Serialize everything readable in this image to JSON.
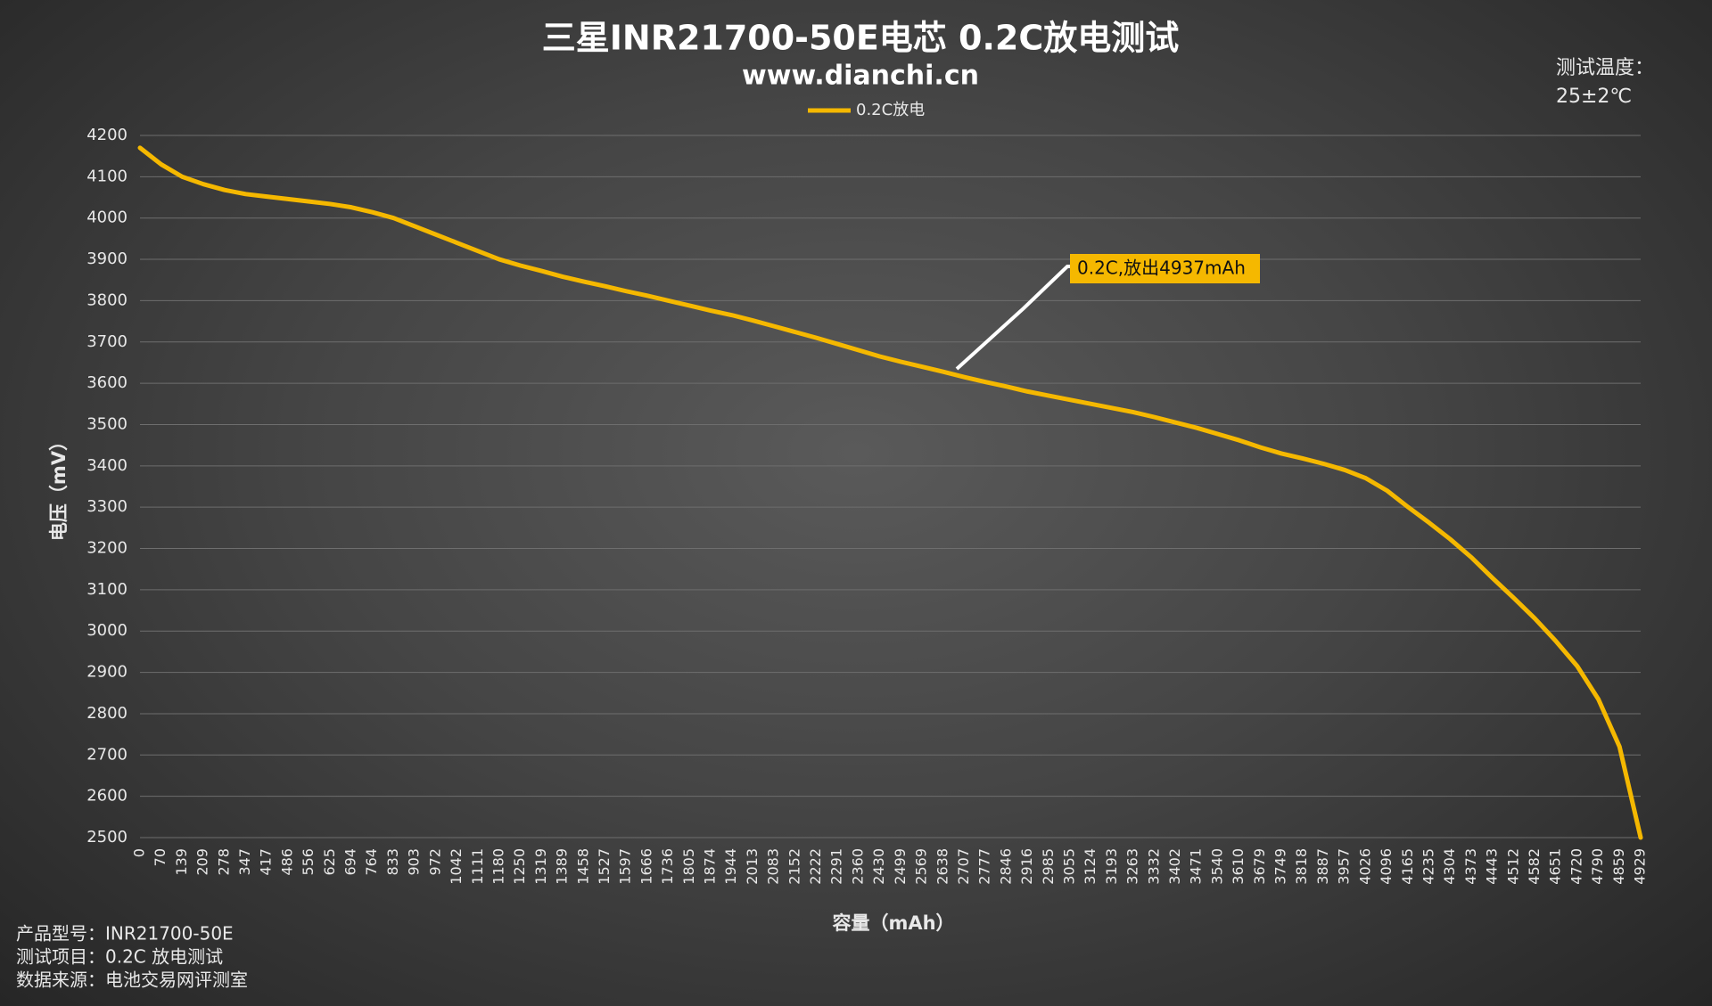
{
  "chart_data": {
    "type": "line",
    "title": "三星INR21700-50E电芯 0.2C放电测试",
    "subtitle": "www.dianchi.cn",
    "x_label": "容量（mAh）",
    "y_label": "电压（mV）",
    "categories": [
      0,
      70,
      139,
      209,
      278,
      347,
      417,
      486,
      556,
      625,
      694,
      764,
      833,
      903,
      972,
      1042,
      1111,
      1180,
      1250,
      1319,
      1389,
      1458,
      1527,
      1597,
      1666,
      1736,
      1805,
      1874,
      1944,
      2013,
      2083,
      2152,
      2222,
      2291,
      2360,
      2430,
      2499,
      2569,
      2638,
      2707,
      2777,
      2846,
      2916,
      2985,
      3055,
      3124,
      3193,
      3263,
      3332,
      3402,
      3471,
      3540,
      3610,
      3679,
      3749,
      3818,
      3887,
      3957,
      4026,
      4096,
      4165,
      4235,
      4304,
      4373,
      4443,
      4512,
      4582,
      4651,
      4720,
      4790,
      4859,
      4929
    ],
    "series": [
      {
        "name": "0.2C放电",
        "color": "#f5b800",
        "values": [
          4170,
          4130,
          4100,
          4082,
          4068,
          4058,
          4052,
          4046,
          4040,
          4034,
          4026,
          4014,
          4000,
          3980,
          3960,
          3940,
          3920,
          3900,
          3885,
          3872,
          3858,
          3846,
          3835,
          3823,
          3812,
          3800,
          3788,
          3776,
          3765,
          3752,
          3738,
          3724,
          3710,
          3695,
          3680,
          3665,
          3652,
          3640,
          3628,
          3615,
          3603,
          3592,
          3580,
          3570,
          3560,
          3550,
          3540,
          3530,
          3518,
          3505,
          3492,
          3477,
          3462,
          3445,
          3430,
          3418,
          3405,
          3390,
          3370,
          3340,
          3300,
          3262,
          3222,
          3178,
          3128,
          3080,
          3030,
          2975,
          2915,
          2835,
          2720,
          2500
        ]
      }
    ],
    "ylim": [
      2500,
      4200
    ],
    "yticks": [
      2500,
      2600,
      2700,
      2800,
      2900,
      3000,
      3100,
      3200,
      3300,
      3400,
      3500,
      3600,
      3700,
      3800,
      3900,
      4000,
      4100,
      4200
    ],
    "grid": true,
    "legend": "top",
    "annotation": "0.2C,放出4937mAh"
  },
  "notes": {
    "temperature_label": "测试温度：",
    "temperature": "25±2℃",
    "footer": [
      "产品型号：INR21700-50E",
      "测试项目：0.2C 放电测试",
      "数据来源：电池交易网评测室"
    ]
  }
}
